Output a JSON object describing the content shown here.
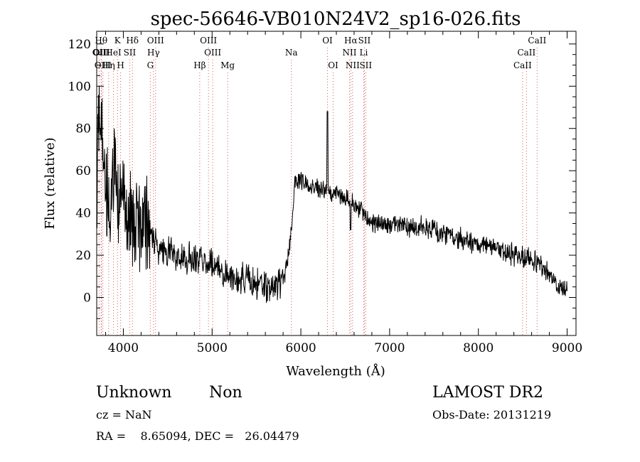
{
  "chart_data": {
    "type": "line",
    "title": "spec-56646-VB010N24V2_sp16-026.fits",
    "xlabel": "Wavelength (Å)",
    "ylabel": "Flux (relative)",
    "xlim": [
      3700,
      9100
    ],
    "ylim": [
      -18,
      126
    ],
    "x_ticks": [
      4000,
      5000,
      6000,
      7000,
      8000,
      9000
    ],
    "x_tick_labels": [
      "4000",
      "5000",
      "6000",
      "7000",
      "8000",
      "9000"
    ],
    "y_ticks": [
      0,
      20,
      40,
      60,
      80,
      100,
      120
    ],
    "y_tick_labels": [
      "0",
      "20",
      "40",
      "60",
      "80",
      "100",
      "120"
    ],
    "grid": false,
    "legend": "none",
    "line_color": "#000000",
    "marker_line_color": "#cc3333",
    "spectrum_anchors": [
      [
        3700,
        40
      ],
      [
        3730,
        90
      ],
      [
        3760,
        75
      ],
      [
        3800,
        55
      ],
      [
        3850,
        45
      ],
      [
        3900,
        62
      ],
      [
        3950,
        50
      ],
      [
        4000,
        48
      ],
      [
        4050,
        40
      ],
      [
        4100,
        38
      ],
      [
        4150,
        34
      ],
      [
        4200,
        36
      ],
      [
        4250,
        38
      ],
      [
        4300,
        32
      ],
      [
        4350,
        27
      ],
      [
        4400,
        23
      ],
      [
        4450,
        23
      ],
      [
        4500,
        22
      ],
      [
        4600,
        20
      ],
      [
        4700,
        18
      ],
      [
        4800,
        19
      ],
      [
        4900,
        17
      ],
      [
        5000,
        16
      ],
      [
        5100,
        12
      ],
      [
        5200,
        10
      ],
      [
        5300,
        9
      ],
      [
        5400,
        8
      ],
      [
        5500,
        6
      ],
      [
        5600,
        5
      ],
      [
        5700,
        5
      ],
      [
        5800,
        8
      ],
      [
        5850,
        18
      ],
      [
        5900,
        35
      ],
      [
        5930,
        55
      ],
      [
        6000,
        55
      ],
      [
        6100,
        54
      ],
      [
        6200,
        52
      ],
      [
        6300,
        50
      ],
      [
        6350,
        50
      ],
      [
        6400,
        50
      ],
      [
        6450,
        48
      ],
      [
        6500,
        47
      ],
      [
        6600,
        45
      ],
      [
        6700,
        40
      ],
      [
        6800,
        36
      ],
      [
        6900,
        35
      ],
      [
        7000,
        34
      ],
      [
        7200,
        34
      ],
      [
        7400,
        33
      ],
      [
        7600,
        30
      ],
      [
        7800,
        28
      ],
      [
        8000,
        25
      ],
      [
        8200,
        23
      ],
      [
        8400,
        20
      ],
      [
        8600,
        18
      ],
      [
        8800,
        12
      ],
      [
        8900,
        4
      ],
      [
        9000,
        5
      ]
    ],
    "spectrum_spikes": [
      [
        6300,
        88
      ],
      [
        6560,
        32
      ],
      [
        5850,
        15
      ]
    ],
    "line_markers": [
      {
        "label": "OII",
        "x": 3727,
        "row": 1
      },
      {
        "label": "Hθ",
        "x": 3750,
        "row": 0
      },
      {
        "label": "OIII",
        "x": 3755,
        "row": 1
      },
      {
        "label": "OIII",
        "x": 3770,
        "row": 2
      },
      {
        "label": "Hη",
        "x": 3835,
        "row": 2
      },
      {
        "label": "HeI",
        "x": 3889,
        "row": 1
      },
      {
        "label": "K",
        "x": 3934,
        "row": 0
      },
      {
        "label": "SII",
        "x": 4072,
        "row": 1
      },
      {
        "label": "H",
        "x": 3969,
        "row": 2
      },
      {
        "label": "Hδ",
        "x": 4102,
        "row": 0
      },
      {
        "label": "OIII",
        "x": 4363,
        "row": 0
      },
      {
        "label": "Hγ",
        "x": 4340,
        "row": 1
      },
      {
        "label": "G",
        "x": 4304,
        "row": 2
      },
      {
        "label": "Hβ",
        "x": 4861,
        "row": 2
      },
      {
        "label": "OIII",
        "x": 4959,
        "row": 0
      },
      {
        "label": "OIII",
        "x": 5007,
        "row": 1
      },
      {
        "label": "Mg",
        "x": 5175,
        "row": 2
      },
      {
        "label": "Na",
        "x": 5893,
        "row": 1
      },
      {
        "label": "OI",
        "x": 6300,
        "row": 0
      },
      {
        "label": "OI",
        "x": 6364,
        "row": 2
      },
      {
        "label": "Hα",
        "x": 6563,
        "row": 0
      },
      {
        "label": "SII",
        "x": 6716,
        "row": 0
      },
      {
        "label": "NII",
        "x": 6548,
        "row": 1
      },
      {
        "label": "Li",
        "x": 6708,
        "row": 1
      },
      {
        "label": "NII",
        "x": 6583,
        "row": 2
      },
      {
        "label": "SII",
        "x": 6731,
        "row": 2
      },
      {
        "label": "CaII",
        "x": 8662,
        "row": 0
      },
      {
        "label": "CaII",
        "x": 8542,
        "row": 1
      },
      {
        "label": "CaII",
        "x": 8498,
        "row": 2
      }
    ]
  },
  "info": {
    "class": "Unknown",
    "subclass": "Non",
    "cz": "cz = NaN",
    "coords": "RA =    8.65094, DEC =   26.04479",
    "survey": "LAMOST DR2",
    "obs_date": "Obs-Date: 20131219"
  }
}
